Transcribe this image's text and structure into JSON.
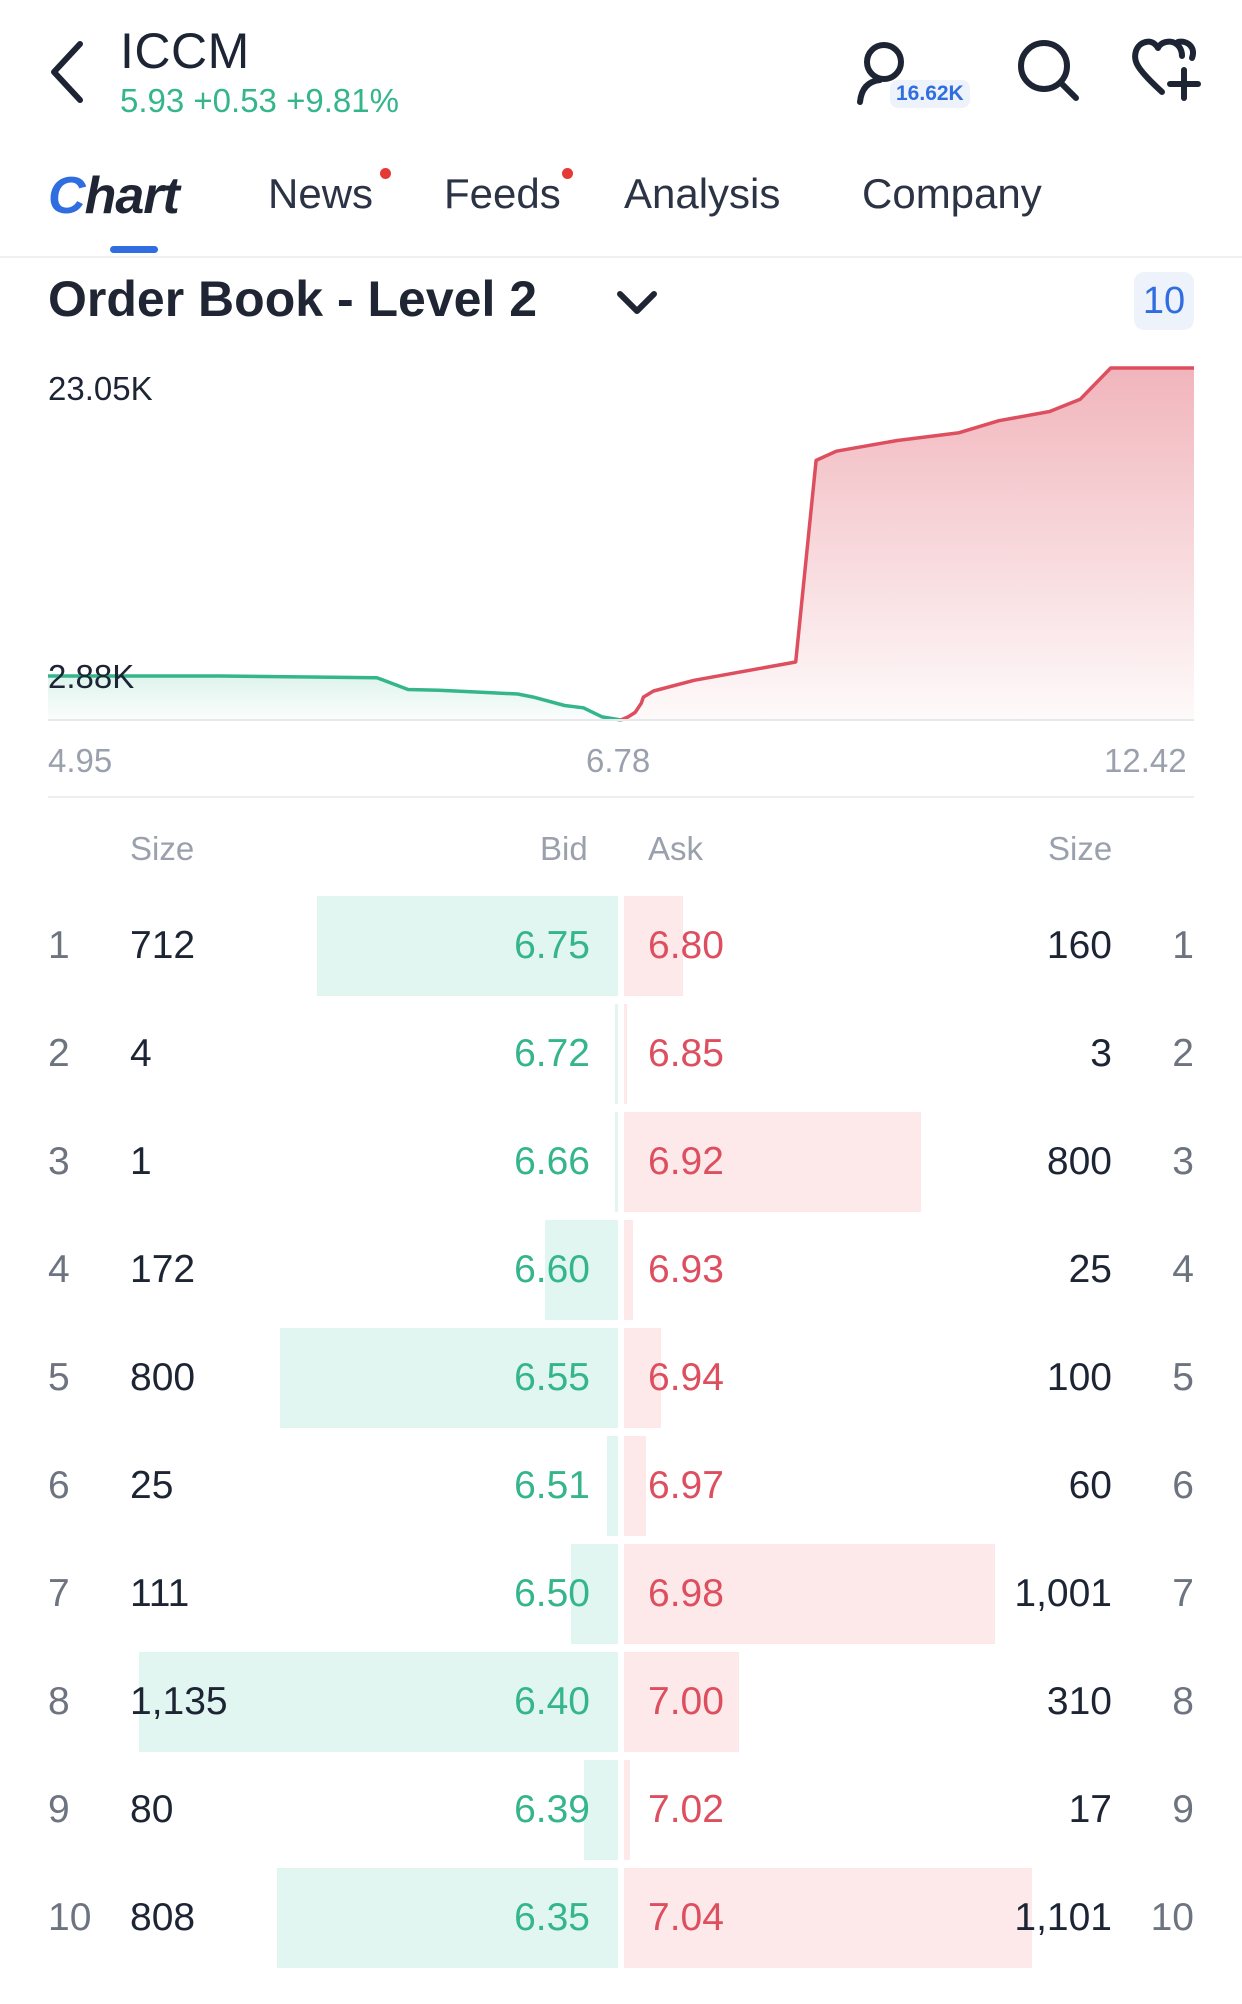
{
  "header": {
    "ticker": "ICCM",
    "quote": "5.93 +0.53 +9.81%",
    "user_count": "16.62K",
    "icons": [
      "back-icon",
      "user-icon",
      "search-icon",
      "heart-plus-icon"
    ],
    "colors": {
      "accent": "#2f6de0",
      "positive": "#35b58c",
      "negative": "#dd4f5f"
    }
  },
  "tabs": [
    {
      "label": "Chart",
      "active": true,
      "dot": false
    },
    {
      "label": "News",
      "active": false,
      "dot": true
    },
    {
      "label": "Feeds",
      "active": false,
      "dot": true
    },
    {
      "label": "Analysis",
      "active": false,
      "dot": false
    },
    {
      "label": "Company",
      "active": false,
      "dot": false
    }
  ],
  "order_book": {
    "title": "Order Book - Level 2",
    "depth": "10",
    "headers": {
      "bid_size": "Size",
      "bid": "Bid",
      "ask": "Ask",
      "ask_size": "Size"
    },
    "rows": [
      {
        "idx": "1",
        "bid_size": "712",
        "bid": "6.75",
        "ask": "6.80",
        "ask_size": "160",
        "bid_qty": 712,
        "ask_qty": 160
      },
      {
        "idx": "2",
        "bid_size": "4",
        "bid": "6.72",
        "ask": "6.85",
        "ask_size": "3",
        "bid_qty": 4,
        "ask_qty": 3
      },
      {
        "idx": "3",
        "bid_size": "1",
        "bid": "6.66",
        "ask": "6.92",
        "ask_size": "800",
        "bid_qty": 1,
        "ask_qty": 800
      },
      {
        "idx": "4",
        "bid_size": "172",
        "bid": "6.60",
        "ask": "6.93",
        "ask_size": "25",
        "bid_qty": 172,
        "ask_qty": 25
      },
      {
        "idx": "5",
        "bid_size": "800",
        "bid": "6.55",
        "ask": "6.94",
        "ask_size": "100",
        "bid_qty": 800,
        "ask_qty": 100
      },
      {
        "idx": "6",
        "bid_size": "25",
        "bid": "6.51",
        "ask": "6.97",
        "ask_size": "60",
        "bid_qty": 25,
        "ask_qty": 60
      },
      {
        "idx": "7",
        "bid_size": "111",
        "bid": "6.50",
        "ask": "6.98",
        "ask_size": "1,001",
        "bid_qty": 111,
        "ask_qty": 1001
      },
      {
        "idx": "8",
        "bid_size": "1,135",
        "bid": "6.40",
        "ask": "7.00",
        "ask_size": "310",
        "bid_qty": 1135,
        "ask_qty": 310
      },
      {
        "idx": "9",
        "bid_size": "80",
        "bid": "6.39",
        "ask": "7.02",
        "ask_size": "17",
        "bid_qty": 80,
        "ask_qty": 17
      },
      {
        "idx": "10",
        "bid_size": "808",
        "bid": "6.35",
        "ask": "7.04",
        "ask_size": "1,101",
        "bid_qty": 808,
        "ask_qty": 1101
      }
    ]
  },
  "chart_data": {
    "type": "area",
    "title": "",
    "xlabel": "",
    "ylabel": "",
    "y_top_label": "23.05K",
    "y_bottom_label": "2.88K",
    "x_tick_labels": [
      "4.95",
      "6.78",
      "12.42"
    ],
    "xlim": [
      4.95,
      12.42
    ],
    "ylim": [
      0,
      23050
    ],
    "grid": false,
    "series": [
      {
        "side": "bid",
        "color": "#35b58c",
        "x": [
          4.95,
          5.5,
          6.0,
          6.1,
          6.2,
          6.35,
          6.45,
          6.5,
          6.6,
          6.66,
          6.72,
          6.78
        ],
        "y": [
          2880,
          2880,
          2770,
          2000,
          1950,
          1800,
          1700,
          1500,
          950,
          800,
          200,
          0
        ]
      },
      {
        "side": "ask",
        "color": "#dd4f5f",
        "x": [
          6.78,
          6.85,
          6.92,
          6.98,
          7.0,
          7.1,
          7.5,
          8.5,
          8.7,
          8.9,
          9.5,
          10.1,
          10.5,
          11.0,
          11.3,
          11.6,
          12.42
        ],
        "y": [
          0,
          200,
          500,
          1100,
          1500,
          1900,
          2600,
          3800,
          17000,
          17600,
          18300,
          18800,
          19600,
          20200,
          21000,
          23050,
          23050
        ]
      }
    ]
  }
}
